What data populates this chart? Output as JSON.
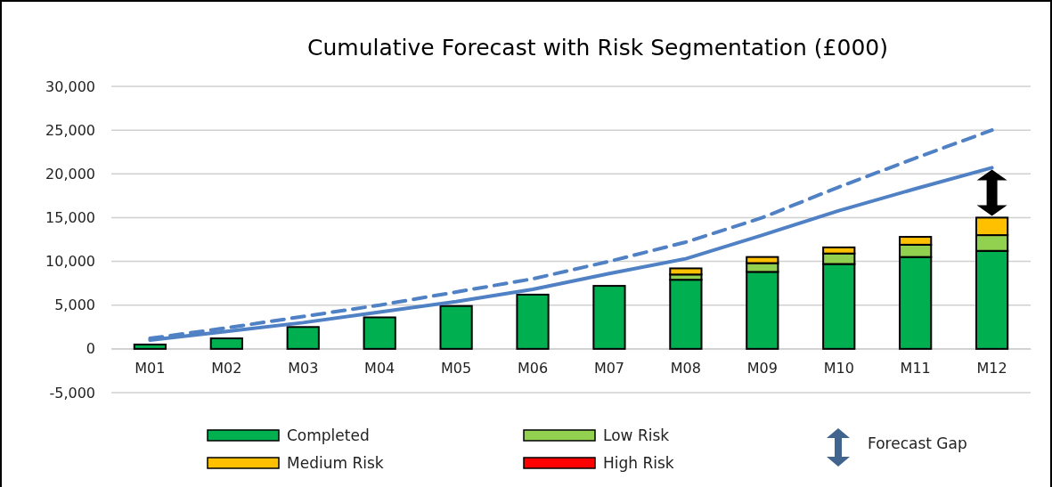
{
  "chart_data": {
    "type": "bar",
    "title": "Cumulative Forecast with Risk Segmentation (£000)",
    "stacked": true,
    "categories": [
      "M01",
      "M02",
      "M03",
      "M04",
      "M05",
      "M06",
      "M07",
      "M08",
      "M09",
      "M10",
      "M11",
      "M12"
    ],
    "series": [
      {
        "name": "Completed",
        "color": "#00b050",
        "values": [
          500,
          1200,
          2500,
          3600,
          4900,
          6200,
          7200,
          7900,
          8800,
          9700,
          10500,
          11200
        ]
      },
      {
        "name": "Low Risk",
        "color": "#92d050",
        "values": [
          0,
          0,
          0,
          0,
          0,
          0,
          0,
          600,
          1000,
          1200,
          1400,
          1800
        ]
      },
      {
        "name": "Medium Risk",
        "color": "#ffc000",
        "values": [
          0,
          0,
          0,
          0,
          0,
          0,
          0,
          700,
          700,
          700,
          900,
          2000
        ]
      },
      {
        "name": "High Risk",
        "color": "#ff0000",
        "values": [
          0,
          0,
          0,
          0,
          0,
          0,
          0,
          0,
          0,
          0,
          0,
          0
        ]
      },
      {
        "type": "line",
        "color": "#4f81c4",
        "line_style": "solid",
        "values": [
          1000,
          2000,
          3000,
          4200,
          5400,
          6800,
          8600,
          10300,
          13000,
          15800,
          18300,
          20700
        ]
      },
      {
        "type": "line",
        "color": "#4f81c4",
        "line_style": "dashed",
        "values": [
          1200,
          2400,
          3700,
          5000,
          6500,
          8000,
          10000,
          12200,
          15000,
          18500,
          21800,
          25000
        ]
      }
    ],
    "ylim": [
      -5000,
      30000
    ],
    "yticks": [
      {
        "value": -5000,
        "label": "-5,000"
      },
      0,
      {
        "value": 5000,
        "label": "5,000"
      },
      {
        "value": 10000,
        "label": "10,000"
      },
      {
        "value": 15000,
        "label": "15,000"
      },
      {
        "value": 20000,
        "label": "20,000"
      },
      {
        "value": 25000,
        "label": "25,000"
      },
      {
        "value": 30000,
        "label": "30,000"
      }
    ],
    "grid": "y",
    "legend": "bottom",
    "marker": "none",
    "annotations": [
      "Forecast Gap"
    ]
  }
}
